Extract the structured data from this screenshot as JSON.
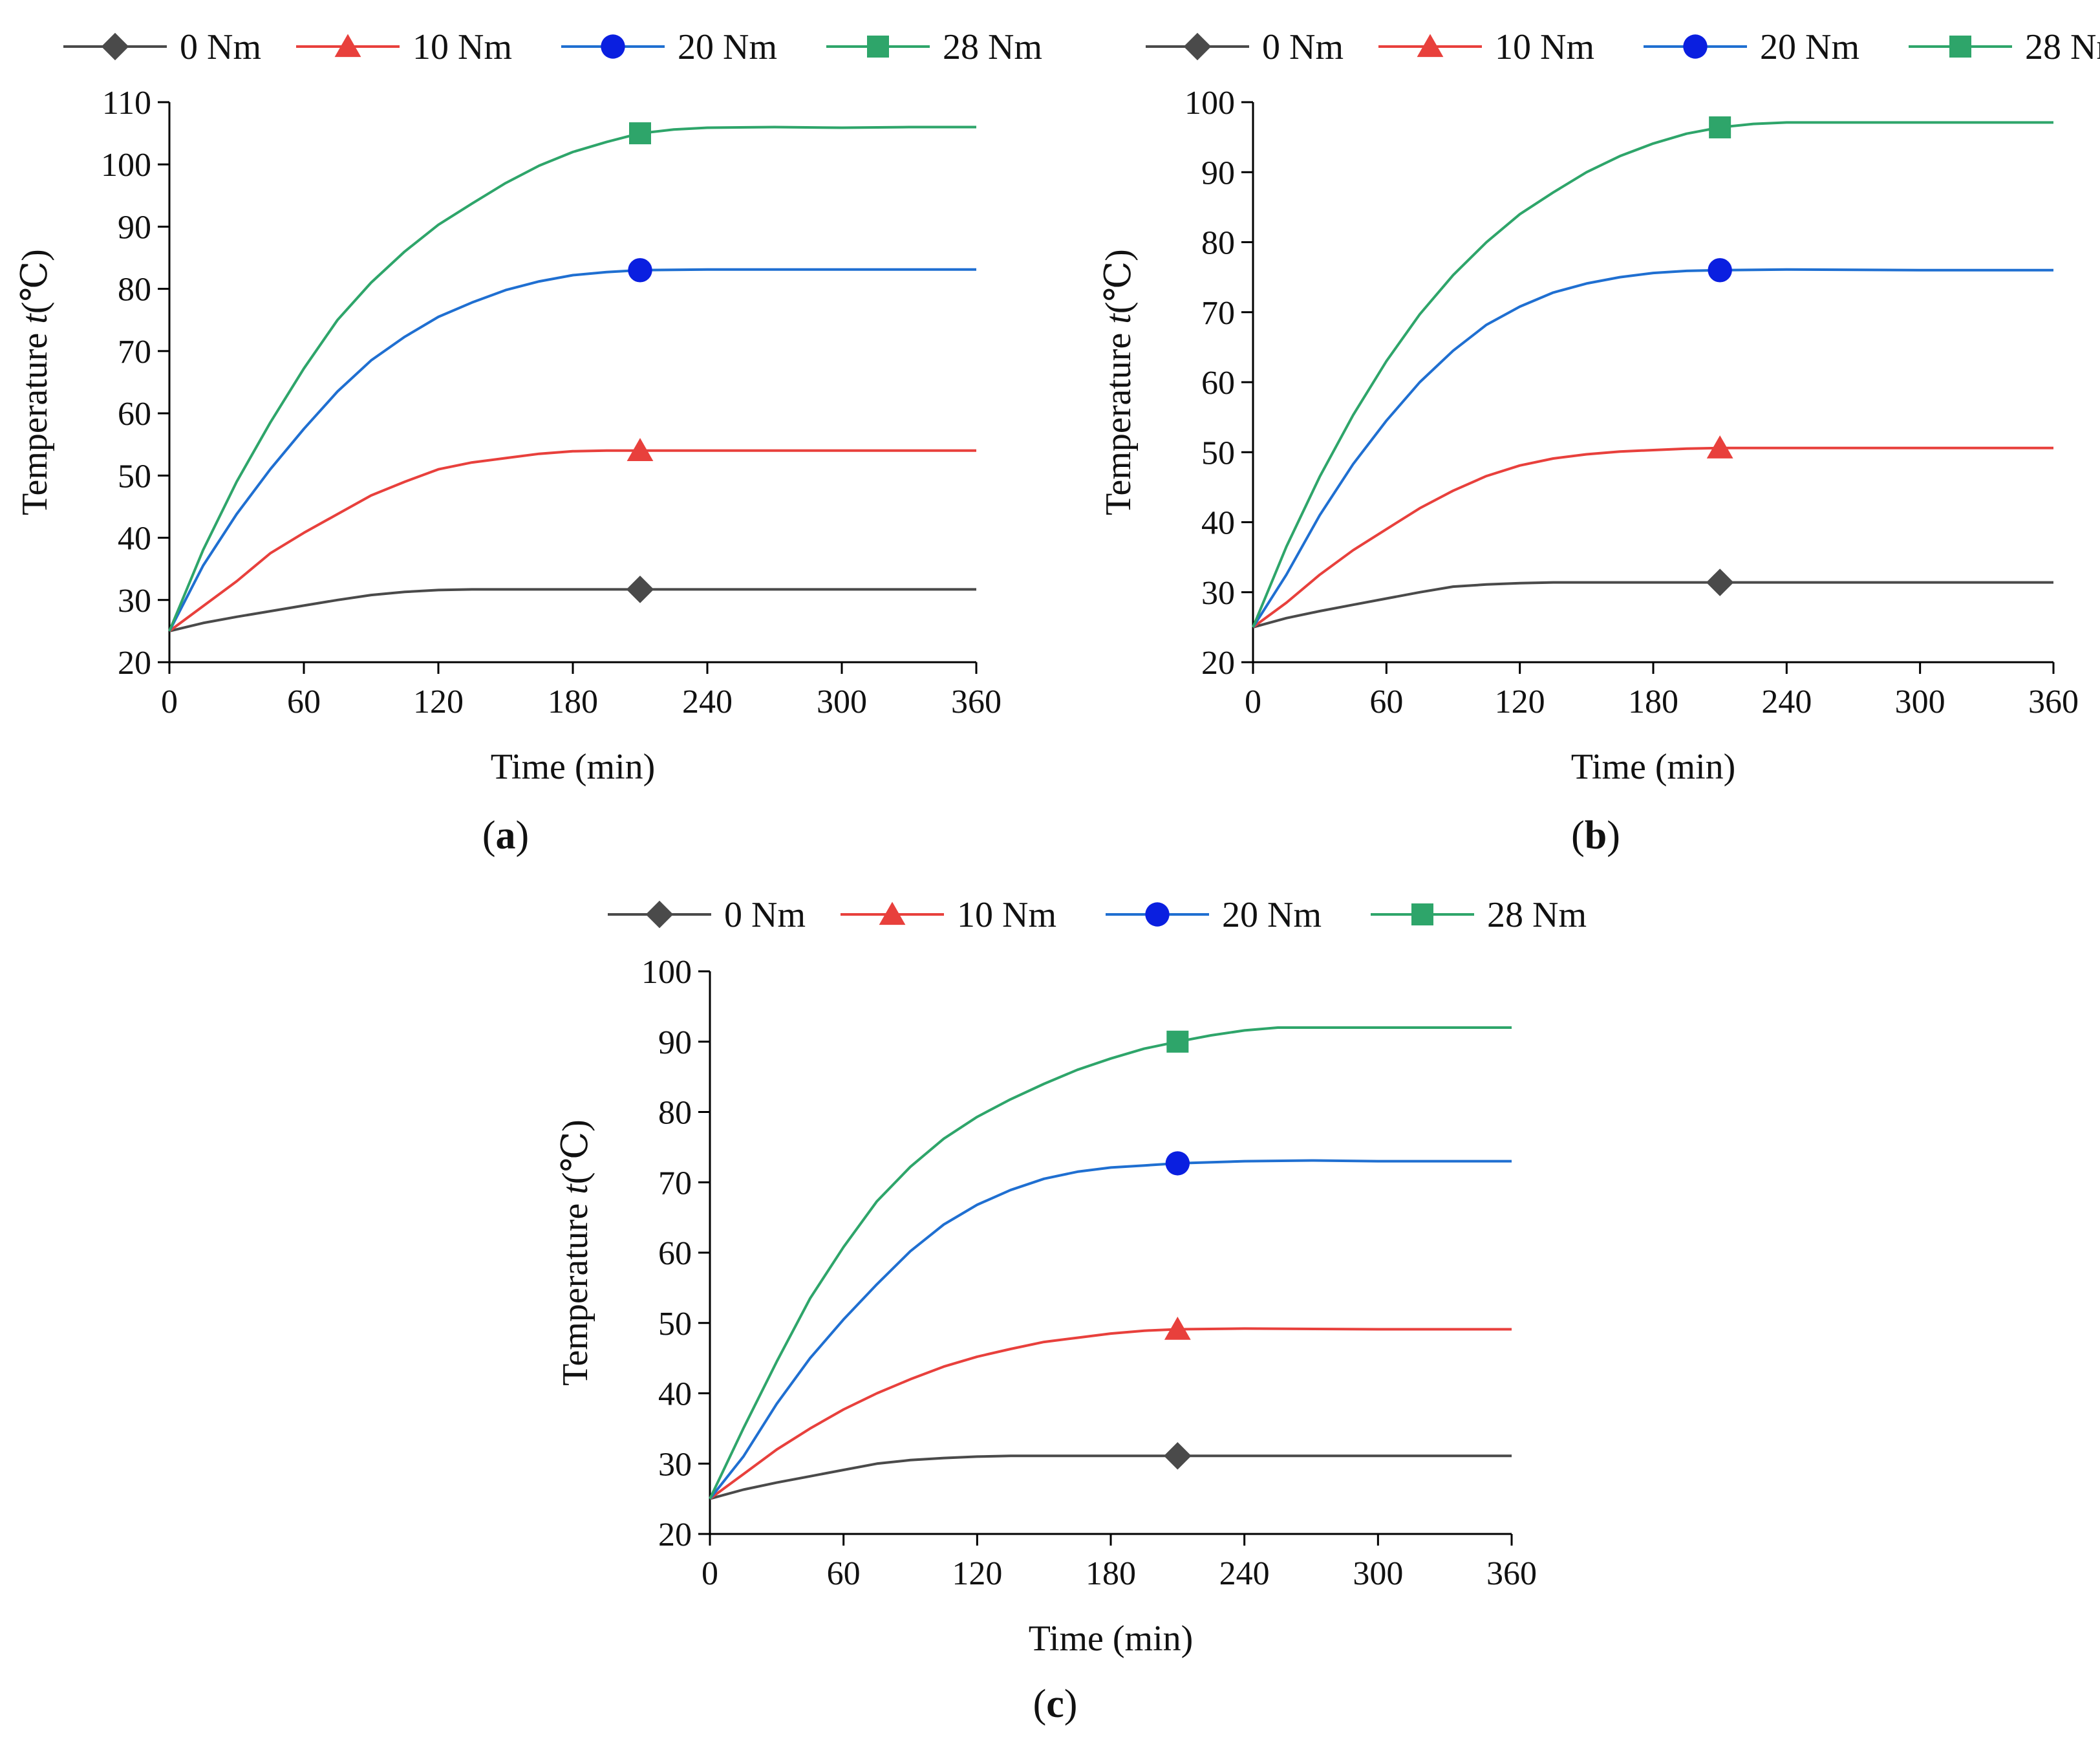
{
  "figure": {
    "panel_labels": [
      "(a)",
      "(b)",
      "(c)"
    ]
  },
  "legend": {
    "entries": [
      {
        "name": "0 Nm",
        "color": "#4a4a4a",
        "marker": "diamond"
      },
      {
        "name": "10 Nm",
        "color": "#e8403c",
        "marker": "triangle"
      },
      {
        "name": "20 Nm",
        "color": "#1f6fd1",
        "marker": "circle"
      },
      {
        "name": "28 Nm",
        "color": "#2ea56a",
        "marker": "square"
      }
    ],
    "marker_colors": {
      "20 Nm": "#0a1fe0"
    }
  },
  "chart_data": [
    {
      "panel": "(a)",
      "type": "line",
      "xlabel": "Time (min)",
      "ylabel_prefix": "Temperature ",
      "ylabel_var": "t",
      "ylabel_suffix": "(℃)",
      "xlim": [
        0,
        360
      ],
      "ylim": [
        20,
        110
      ],
      "xticks": [
        0,
        60,
        120,
        180,
        240,
        300,
        360
      ],
      "yticks": [
        20,
        30,
        40,
        50,
        60,
        70,
        80,
        90,
        100,
        110
      ],
      "marker_x": 210,
      "series": [
        {
          "name": "0 Nm",
          "x": [
            0,
            15,
            30,
            45,
            60,
            75,
            90,
            105,
            120,
            135,
            150,
            180,
            210,
            240,
            300,
            360
          ],
          "y": [
            25,
            26.3,
            27.3,
            28.2,
            29.1,
            30,
            30.8,
            31.3,
            31.6,
            31.7,
            31.7,
            31.7,
            31.7,
            31.7,
            31.7,
            31.7
          ]
        },
        {
          "name": "10 Nm",
          "x": [
            0,
            15,
            30,
            45,
            60,
            75,
            90,
            105,
            120,
            135,
            150,
            165,
            180,
            195,
            210,
            240,
            300,
            360
          ],
          "y": [
            25,
            29,
            33,
            37.5,
            40.8,
            43.8,
            46.8,
            49,
            51,
            52.1,
            52.8,
            53.5,
            53.9,
            54,
            54,
            54,
            54,
            54
          ]
        },
        {
          "name": "20 Nm",
          "x": [
            0,
            15,
            30,
            45,
            60,
            75,
            90,
            105,
            120,
            135,
            150,
            165,
            180,
            195,
            210,
            240,
            300,
            360
          ],
          "y": [
            25,
            35.5,
            43.8,
            51,
            57.5,
            63.5,
            68.5,
            72.3,
            75.5,
            77.8,
            79.8,
            81.2,
            82.2,
            82.7,
            83,
            83.1,
            83.1,
            83.1
          ]
        },
        {
          "name": "28 Nm",
          "x": [
            0,
            15,
            30,
            45,
            60,
            75,
            90,
            105,
            120,
            135,
            150,
            165,
            180,
            195,
            210,
            225,
            240,
            270,
            300,
            330,
            360
          ],
          "y": [
            25,
            38,
            49,
            58.5,
            67.2,
            75,
            81,
            86,
            90.3,
            93.7,
            97,
            99.8,
            102,
            103.6,
            105,
            105.6,
            105.9,
            106,
            105.9,
            106,
            106
          ]
        }
      ]
    },
    {
      "panel": "(b)",
      "type": "line",
      "xlabel": "Time (min)",
      "ylabel_prefix": "Temperature ",
      "ylabel_var": "t",
      "ylabel_suffix": "(℃)",
      "xlim": [
        0,
        360
      ],
      "ylim": [
        20,
        100
      ],
      "xticks": [
        0,
        60,
        120,
        180,
        240,
        300,
        360
      ],
      "yticks": [
        20,
        30,
        40,
        50,
        60,
        70,
        80,
        90,
        100
      ],
      "marker_x": 210,
      "series": [
        {
          "name": "0 Nm",
          "x": [
            0,
            15,
            30,
            45,
            60,
            75,
            90,
            105,
            120,
            135,
            150,
            180,
            210,
            240,
            300,
            360
          ],
          "y": [
            25,
            26.3,
            27.3,
            28.2,
            29.1,
            30,
            30.8,
            31.1,
            31.3,
            31.4,
            31.4,
            31.4,
            31.4,
            31.4,
            31.4,
            31.4
          ]
        },
        {
          "name": "10 Nm",
          "x": [
            0,
            15,
            30,
            45,
            60,
            75,
            90,
            105,
            120,
            135,
            150,
            165,
            180,
            195,
            210,
            240,
            300,
            360
          ],
          "y": [
            25,
            28.5,
            32.5,
            36,
            39,
            42,
            44.5,
            46.6,
            48.1,
            49.1,
            49.7,
            50.1,
            50.3,
            50.5,
            50.6,
            50.6,
            50.6,
            50.6
          ]
        },
        {
          "name": "20 Nm",
          "x": [
            0,
            15,
            30,
            45,
            60,
            75,
            90,
            105,
            120,
            135,
            150,
            165,
            180,
            195,
            210,
            240,
            300,
            360
          ],
          "y": [
            25,
            32.5,
            41,
            48.3,
            54.5,
            60,
            64.5,
            68.2,
            70.8,
            72.8,
            74.1,
            75,
            75.6,
            75.9,
            76,
            76.1,
            76,
            76
          ]
        },
        {
          "name": "28 Nm",
          "x": [
            0,
            15,
            30,
            45,
            60,
            75,
            90,
            105,
            120,
            135,
            150,
            165,
            180,
            195,
            210,
            225,
            240,
            270,
            300,
            360
          ],
          "y": [
            25,
            36.5,
            46.5,
            55.3,
            63,
            69.7,
            75.3,
            80,
            84,
            87.1,
            90,
            92.3,
            94.1,
            95.5,
            96.4,
            96.9,
            97.1,
            97.1,
            97.1,
            97.1
          ]
        }
      ]
    },
    {
      "panel": "(c)",
      "type": "line",
      "xlabel": "Time (min)",
      "ylabel_prefix": "Temperature ",
      "ylabel_var": "t",
      "ylabel_suffix": "(℃)",
      "xlim": [
        0,
        360
      ],
      "ylim": [
        20,
        100
      ],
      "xticks": [
        0,
        60,
        120,
        180,
        240,
        300,
        360
      ],
      "yticks": [
        20,
        30,
        40,
        50,
        60,
        70,
        80,
        90,
        100
      ],
      "marker_x": 210,
      "series": [
        {
          "name": "0 Nm",
          "x": [
            0,
            15,
            30,
            45,
            60,
            75,
            90,
            105,
            120,
            135,
            150,
            180,
            210,
            240,
            300,
            360
          ],
          "y": [
            25,
            26.3,
            27.3,
            28.2,
            29.1,
            30,
            30.5,
            30.8,
            31,
            31.1,
            31.1,
            31.1,
            31.1,
            31.1,
            31.1,
            31.1
          ]
        },
        {
          "name": "10 Nm",
          "x": [
            0,
            15,
            30,
            45,
            60,
            75,
            90,
            105,
            120,
            135,
            150,
            165,
            180,
            195,
            210,
            240,
            300,
            360
          ],
          "y": [
            25,
            28.5,
            32,
            35,
            37.7,
            40,
            42,
            43.8,
            45.2,
            46.3,
            47.3,
            47.9,
            48.5,
            48.9,
            49.1,
            49.2,
            49.1,
            49.1
          ]
        },
        {
          "name": "20 Nm",
          "x": [
            0,
            15,
            30,
            45,
            60,
            75,
            90,
            105,
            120,
            135,
            150,
            165,
            180,
            195,
            210,
            240,
            270,
            300,
            360
          ],
          "y": [
            25,
            31,
            38.5,
            45,
            50.5,
            55.5,
            60.2,
            64,
            66.8,
            68.9,
            70.5,
            71.5,
            72.1,
            72.4,
            72.7,
            73,
            73.1,
            73,
            73
          ]
        },
        {
          "name": "28 Nm",
          "x": [
            0,
            15,
            30,
            45,
            60,
            75,
            90,
            105,
            120,
            135,
            150,
            165,
            180,
            195,
            210,
            225,
            240,
            255,
            270,
            300,
            360
          ],
          "y": [
            25,
            35,
            44.5,
            53.5,
            60.8,
            67.3,
            72.2,
            76.2,
            79.3,
            81.8,
            84,
            86,
            87.6,
            89,
            90,
            90.9,
            91.6,
            92,
            92,
            92,
            92
          ]
        }
      ]
    }
  ]
}
